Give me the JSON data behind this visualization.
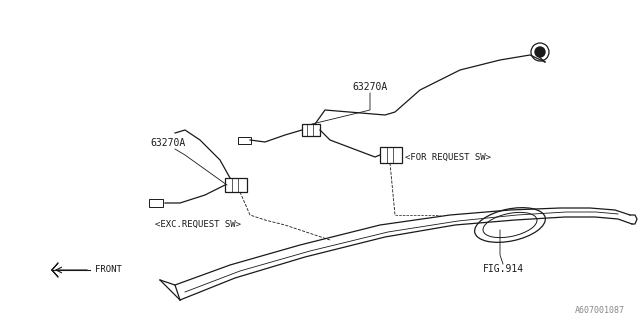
{
  "bg_color": "#ffffff",
  "line_color": "#1a1a1a",
  "text_color": "#1a1a1a",
  "watermark": "A607001087",
  "labels": {
    "part_upper": "63270A",
    "part_lower": "63270A",
    "for_request": "<FOR REQUEST SW>",
    "exc_request": "<EXC.REQUEST SW>",
    "fig": "FIG.914"
  }
}
